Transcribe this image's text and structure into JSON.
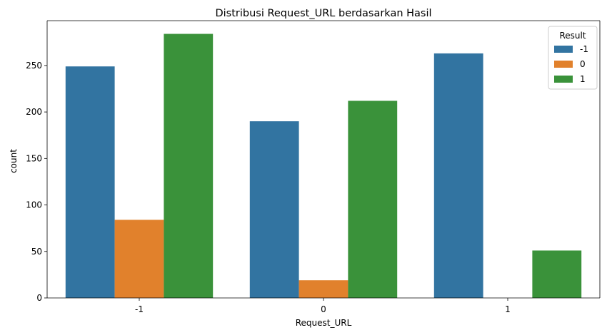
{
  "chart_data": {
    "type": "bar",
    "title": "Distribusi Request_URL berdasarkan Hasil",
    "xlabel": "Request_URL",
    "ylabel": "count",
    "categories": [
      "-1",
      "0",
      "1"
    ],
    "series": [
      {
        "name": "-1",
        "values": [
          249,
          190,
          263
        ],
        "color": "#3274a1"
      },
      {
        "name": "0",
        "values": [
          84,
          19,
          0
        ],
        "color": "#e1812c"
      },
      {
        "name": "1",
        "values": [
          284,
          212,
          51
        ],
        "color": "#3a923a"
      }
    ],
    "ylim": [
      0,
      298.2
    ],
    "yticks": [
      0,
      50,
      100,
      150,
      200,
      250
    ],
    "legend": {
      "title": "Result",
      "placement": "top-right"
    },
    "grid": false
  }
}
